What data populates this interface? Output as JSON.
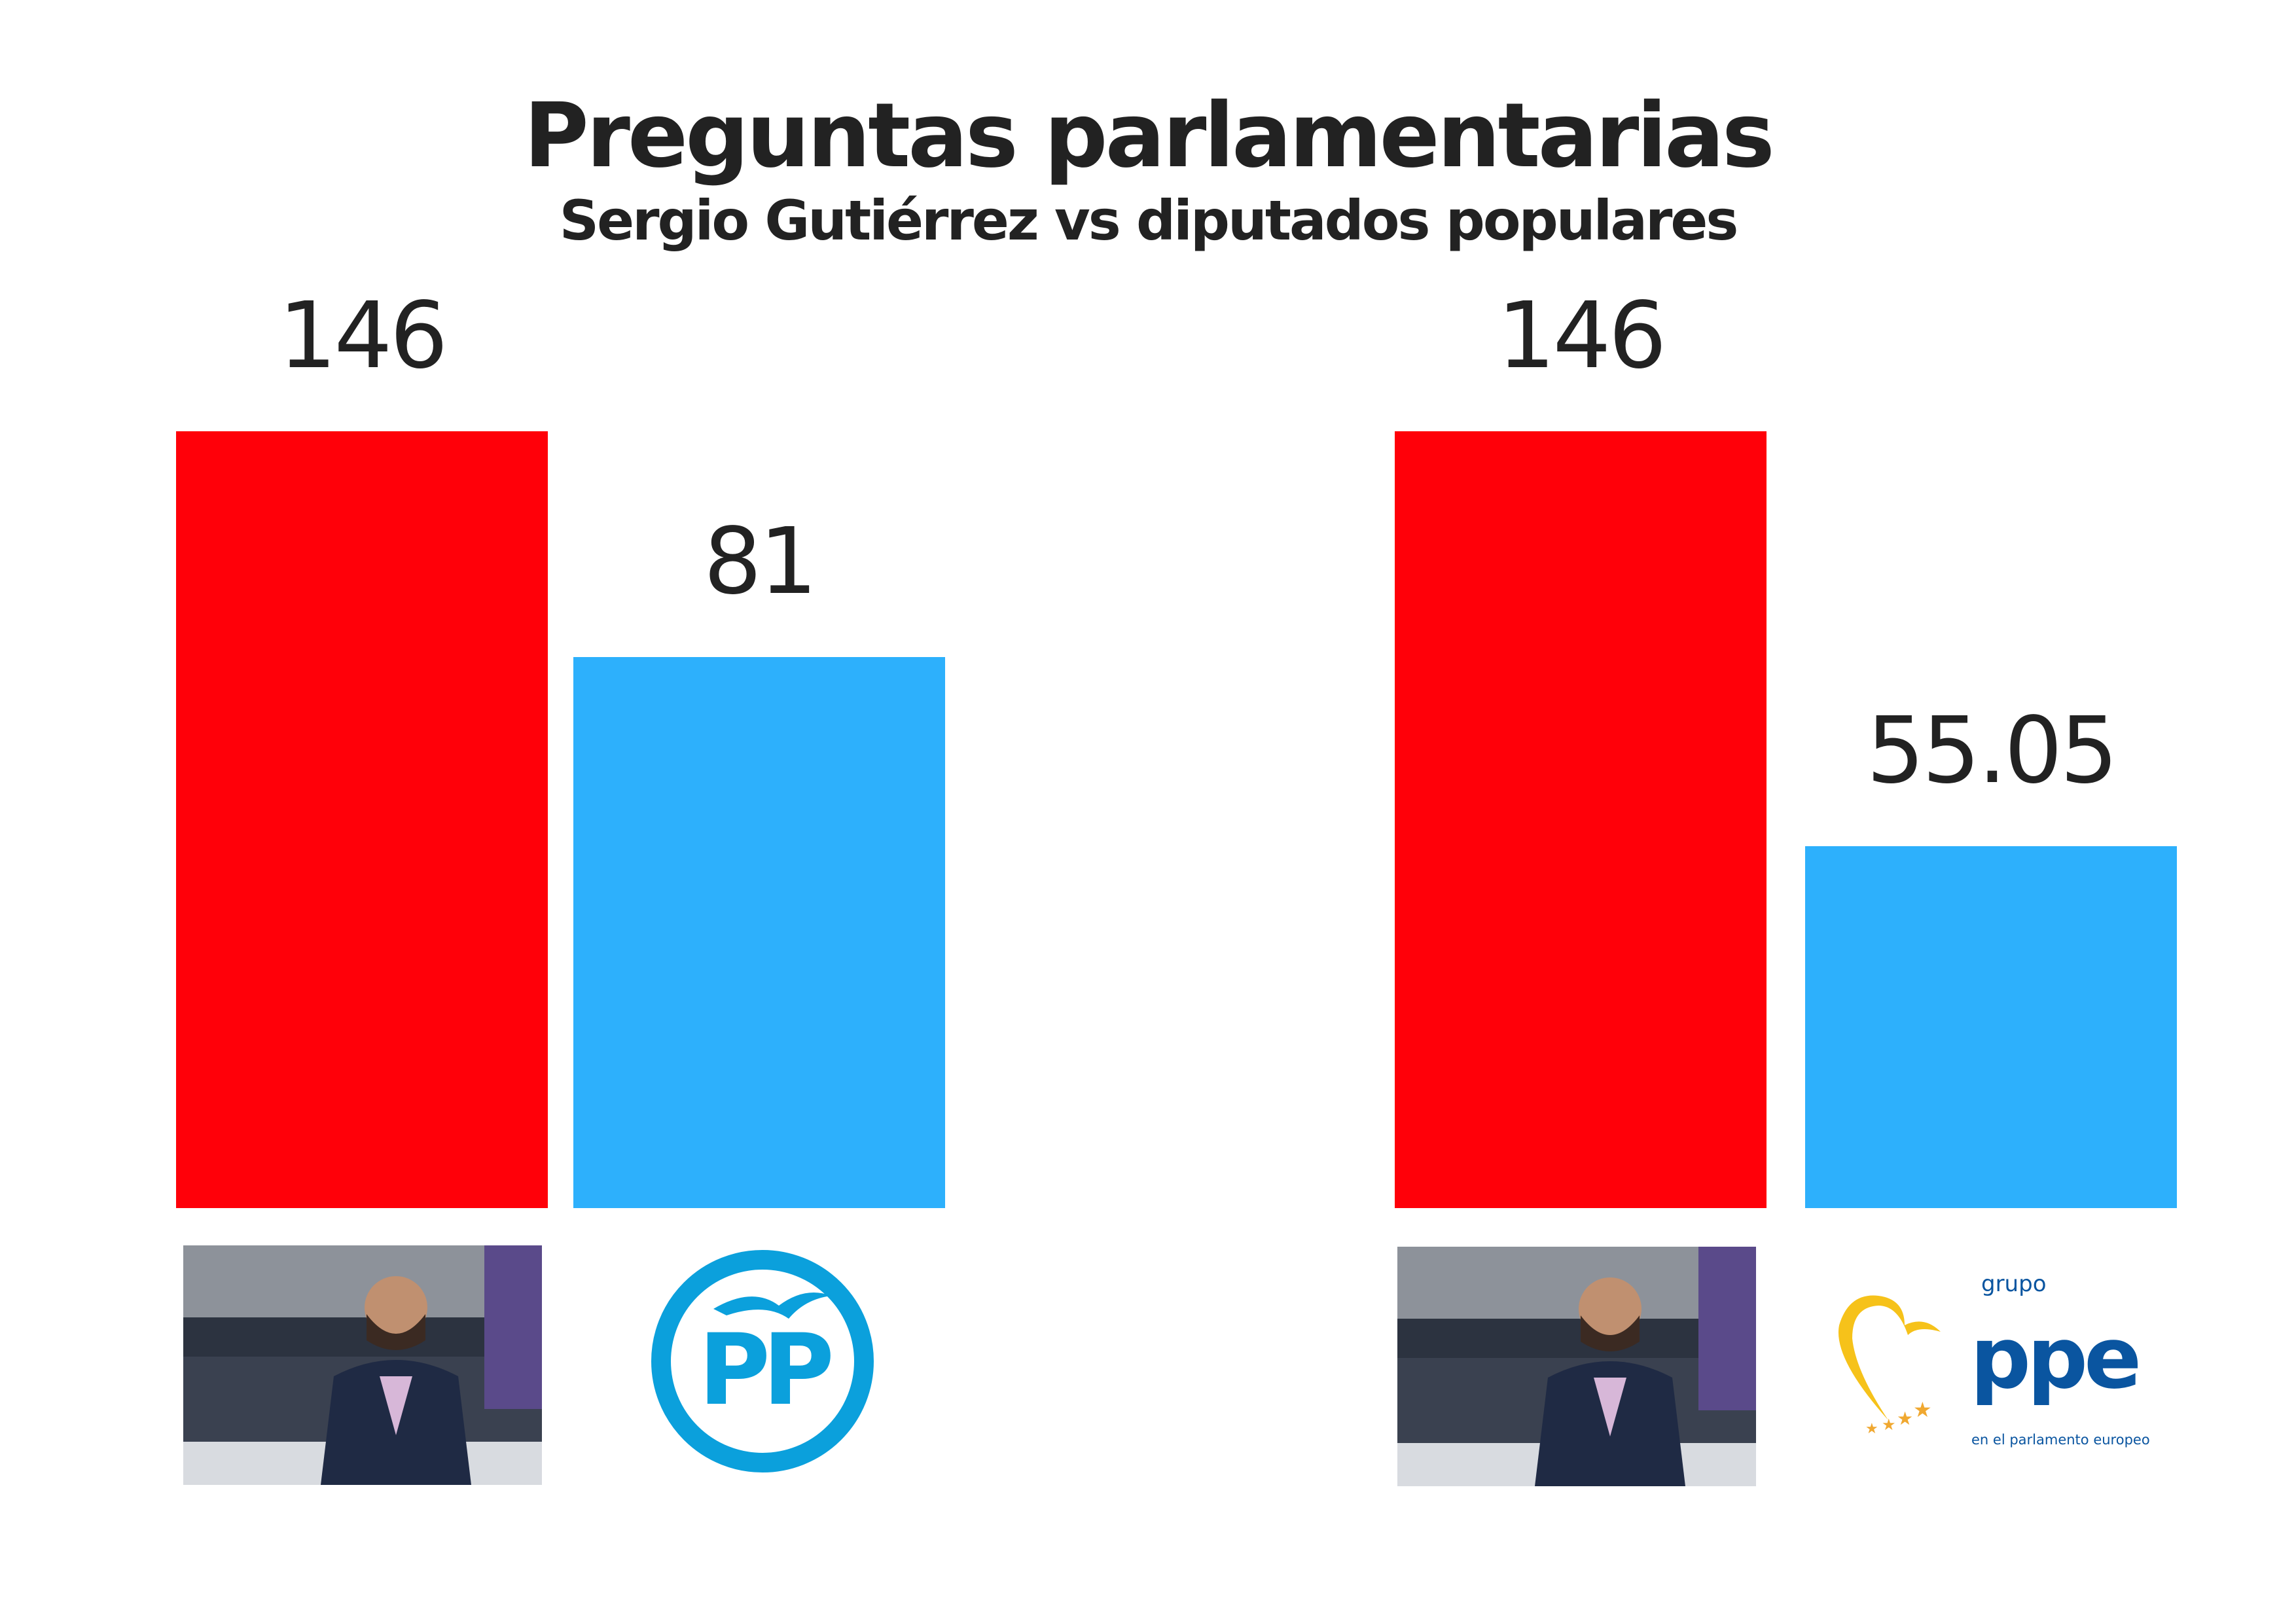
{
  "chart_data": [
    {
      "type": "bar",
      "title": "Preguntas parlamentarias",
      "subtitle": "Sergio Gutiérrez vs diputados populares",
      "categories": [
        "Sergio Gutiérrez",
        "PP"
      ],
      "values": [
        146,
        81
      ],
      "labels": [
        "146",
        "81"
      ],
      "colors": [
        "#ff0009",
        "#2db0fc"
      ],
      "ylim": [
        -77.6,
        146
      ]
    },
    {
      "type": "bar",
      "categories": [
        "Sergio Gutiérrez",
        "Grupo PPE"
      ],
      "values": [
        146,
        55.05
      ],
      "labels": [
        "146",
        "55.05"
      ],
      "colors": [
        "#ff0009",
        "#2db0fc"
      ],
      "ylim": [
        -24.3,
        146
      ]
    }
  ],
  "logos": {
    "pp": "PP",
    "ppe_top": "grupo",
    "ppe_main": "ppe",
    "ppe_bottom": "en el parlamento europeo"
  }
}
